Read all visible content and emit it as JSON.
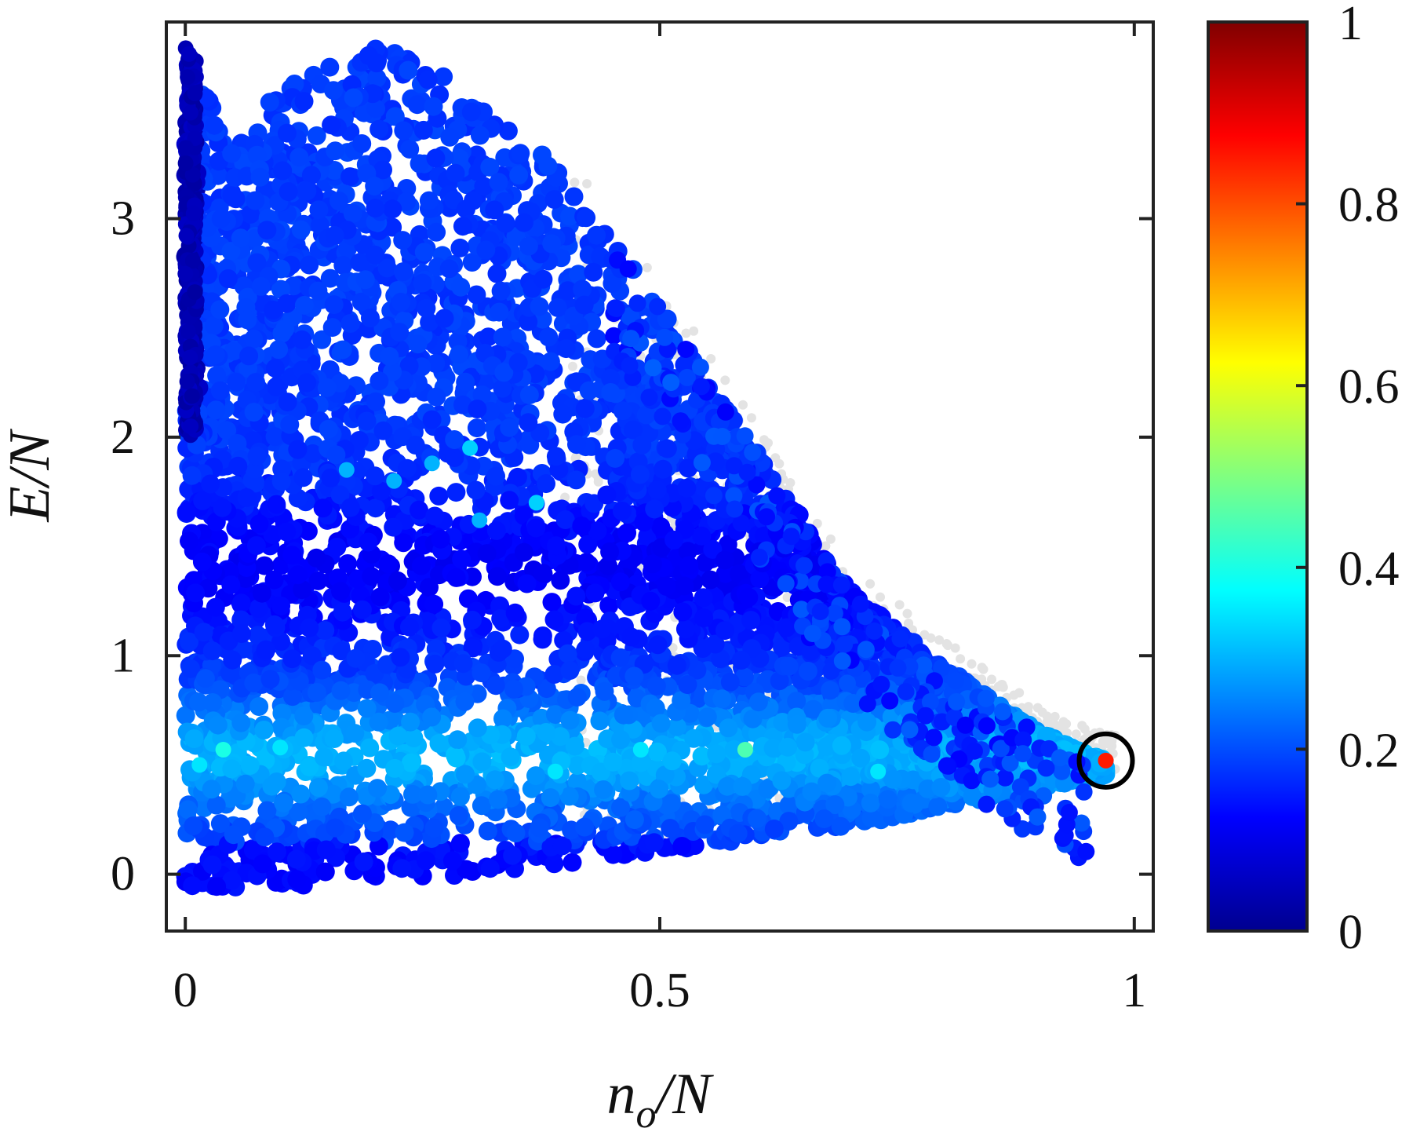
{
  "chart_data": {
    "type": "scatter",
    "title": "",
    "xlabel_parts": [
      "n",
      "o",
      "/N"
    ],
    "ylabel": "E/N",
    "xlim": [
      -0.02,
      1.02
    ],
    "ylim": [
      -0.26,
      3.9
    ],
    "xticks": [
      0,
      0.5,
      1
    ],
    "xtick_labels": [
      "0",
      "0.5",
      "1"
    ],
    "yticks": [
      0,
      1,
      2,
      3
    ],
    "ytick_labels": [
      "0",
      "1",
      "2",
      "3"
    ],
    "grid": false,
    "legend": "none",
    "colorbar": {
      "colormap": "jet",
      "range": [
        0,
        1
      ],
      "ticks": [
        0,
        0.2,
        0.4,
        0.6,
        0.8,
        1
      ],
      "tick_labels": [
        "0",
        "0.2",
        "0.4",
        "0.6",
        "0.8",
        "1"
      ],
      "colors": [
        "#00008f",
        "#0000ff",
        "#0080ff",
        "#00ffff",
        "#80ff80",
        "#ffff00",
        "#ff8000",
        "#ff0000",
        "#800000"
      ]
    },
    "background_points_color": "#e3e3e3",
    "point_cloud": {
      "description_boundary_upper": [
        [
          0.0,
          3.78
        ],
        [
          0.05,
          3.3
        ],
        [
          0.1,
          3.6
        ],
        [
          0.2,
          3.8
        ],
        [
          0.3,
          3.6
        ],
        [
          0.4,
          3.2
        ],
        [
          0.5,
          2.6
        ],
        [
          0.6,
          1.95
        ],
        [
          0.7,
          1.3
        ],
        [
          0.8,
          0.95
        ],
        [
          0.9,
          0.65
        ],
        [
          0.97,
          0.52
        ]
      ],
      "description_boundary_lower": [
        [
          0.0,
          -0.06
        ],
        [
          0.1,
          -0.06
        ],
        [
          0.3,
          0.0
        ],
        [
          0.5,
          0.1
        ],
        [
          0.7,
          0.22
        ],
        [
          0.85,
          0.35
        ],
        [
          0.97,
          0.45
        ]
      ],
      "typical_color_value": 0.18,
      "band_peak_y": 0.55,
      "band_peak_color_value": 0.3
    },
    "highlighted_points": [
      {
        "x": 0.04,
        "y": 0.57,
        "c": 0.4
      },
      {
        "x": 0.1,
        "y": 0.58,
        "c": 0.35
      },
      {
        "x": 0.015,
        "y": 0.5,
        "c": 0.35
      },
      {
        "x": 0.39,
        "y": 0.47,
        "c": 0.35
      },
      {
        "x": 0.48,
        "y": 0.57,
        "c": 0.35
      },
      {
        "x": 0.59,
        "y": 0.57,
        "c": 0.45
      },
      {
        "x": 0.73,
        "y": 0.47,
        "c": 0.35
      },
      {
        "x": 0.3,
        "y": 1.95,
        "c": 0.33
      },
      {
        "x": 0.26,
        "y": 1.88,
        "c": 0.3
      },
      {
        "x": 0.37,
        "y": 1.7,
        "c": 0.33
      },
      {
        "x": 0.31,
        "y": 1.62,
        "c": 0.3
      },
      {
        "x": 0.17,
        "y": 1.85,
        "c": 0.3
      },
      {
        "x": 0.22,
        "y": 1.8,
        "c": 0.3
      }
    ],
    "marked_point": {
      "x": 0.97,
      "y": 0.52,
      "c": 0.85
    }
  }
}
